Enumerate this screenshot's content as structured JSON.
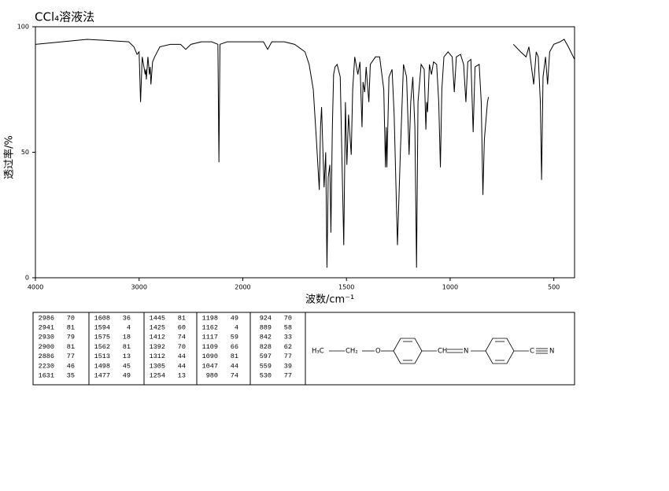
{
  "chart_data": {
    "type": "line",
    "title": "CCl₄溶液法",
    "x_label": "波数/cm⁻¹",
    "y_label": "透过率/%",
    "xlim": [
      4000,
      400
    ],
    "xticks": [
      4000,
      3000,
      2000,
      1500,
      1000,
      500
    ],
    "x_scale": "tick-piecewise",
    "ylim": [
      0,
      100
    ],
    "yticks": [
      0,
      50,
      100
    ],
    "color": "#000000",
    "x": [
      4000,
      3500,
      3100,
      3050,
      3020,
      3000,
      2986,
      2970,
      2941,
      2935,
      2930,
      2915,
      2900,
      2893,
      2886,
      2870,
      2850,
      2800,
      2700,
      2600,
      2550,
      2500,
      2400,
      2300,
      2240,
      2230,
      2220,
      2150,
      2000,
      1900,
      1880,
      1860,
      1800,
      1750,
      1700,
      1680,
      1660,
      1645,
      1631,
      1625,
      1620,
      1608,
      1600,
      1594,
      1588,
      1580,
      1575,
      1568,
      1562,
      1555,
      1545,
      1530,
      1513,
      1505,
      1498,
      1490,
      1477,
      1470,
      1460,
      1445,
      1435,
      1425,
      1420,
      1412,
      1405,
      1392,
      1385,
      1360,
      1340,
      1320,
      1312,
      1308,
      1305,
      1295,
      1280,
      1270,
      1254,
      1240,
      1225,
      1210,
      1198,
      1190,
      1180,
      1170,
      1162,
      1155,
      1140,
      1125,
      1117,
      1113,
      1109,
      1100,
      1090,
      1080,
      1065,
      1055,
      1047,
      1040,
      1030,
      1010,
      990,
      980,
      970,
      950,
      935,
      924,
      915,
      900,
      889,
      880,
      860,
      850,
      842,
      835,
      828,
      820,
      815,
      760,
      695,
      660,
      634,
      620,
      597,
      585,
      575,
      565,
      559,
      552,
      540,
      530,
      520,
      500,
      470,
      450,
      430,
      400
    ],
    "values": [
      93,
      95,
      94,
      92,
      89,
      90,
      70,
      88,
      81,
      83,
      79,
      88,
      81,
      84,
      77,
      86,
      88,
      92,
      93,
      93,
      91,
      93,
      94,
      94,
      93,
      46,
      93,
      94,
      94,
      94,
      91,
      94,
      94,
      93,
      90,
      85,
      75,
      55,
      35,
      60,
      68,
      36,
      50,
      4,
      40,
      45,
      18,
      60,
      81,
      84,
      85,
      80,
      13,
      70,
      45,
      65,
      49,
      75,
      88,
      81,
      86,
      60,
      78,
      74,
      84,
      70,
      85,
      88,
      88,
      75,
      44,
      60,
      44,
      80,
      83,
      65,
      13,
      50,
      85,
      80,
      49,
      70,
      80,
      60,
      4,
      70,
      85,
      83,
      59,
      70,
      66,
      85,
      81,
      86,
      85,
      70,
      44,
      75,
      88,
      90,
      88,
      74,
      88,
      89,
      85,
      70,
      86,
      87,
      58,
      84,
      85,
      70,
      33,
      55,
      62,
      70,
      72,
      null,
      93,
      90,
      88,
      92,
      77,
      90,
      88,
      70,
      39,
      80,
      88,
      77,
      90,
      93,
      94,
      95,
      92,
      87
    ]
  },
  "peak_table": {
    "rows": [
      [
        2986,
        70
      ],
      [
        2941,
        81
      ],
      [
        2930,
        79
      ],
      [
        2900,
        81
      ],
      [
        2886,
        77
      ],
      [
        2230,
        46
      ],
      [
        1631,
        35
      ],
      [
        1608,
        36
      ],
      [
        1594,
        4
      ],
      [
        1575,
        18
      ],
      [
        1562,
        81
      ],
      [
        1513,
        13
      ],
      [
        1498,
        45
      ],
      [
        1477,
        49
      ],
      [
        1445,
        81
      ],
      [
        1425,
        60
      ],
      [
        1412,
        74
      ],
      [
        1392,
        70
      ],
      [
        1312,
        44
      ],
      [
        1305,
        44
      ],
      [
        1254,
        13
      ],
      [
        1198,
        49
      ],
      [
        1162,
        4
      ],
      [
        1117,
        59
      ],
      [
        1109,
        66
      ],
      [
        1090,
        81
      ],
      [
        1047,
        44
      ],
      [
        980,
        74
      ],
      [
        924,
        70
      ],
      [
        889,
        58
      ],
      [
        842,
        33
      ],
      [
        828,
        62
      ],
      [
        597,
        77
      ],
      [
        559,
        39
      ],
      [
        530,
        77
      ]
    ]
  },
  "structure": {
    "labels": [
      "H₃C",
      "CH₂",
      "O",
      "CH",
      "N",
      "C",
      "N"
    ]
  }
}
